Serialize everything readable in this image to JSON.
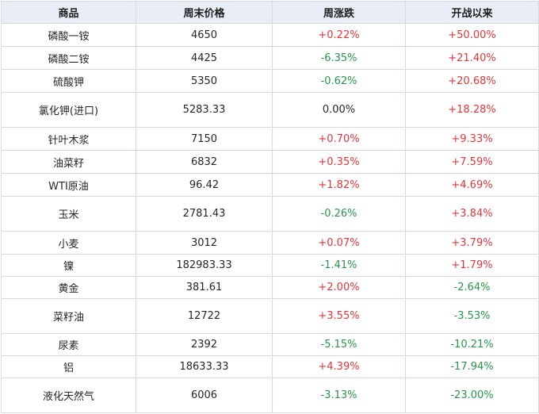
{
  "table": {
    "headers": [
      "商品",
      "周末价格",
      "周涨跌",
      "开战以来"
    ],
    "rows": [
      {
        "name": "磷酸一铵",
        "price": "4650",
        "week": "+0.22%",
        "since": "+50.00%"
      },
      {
        "name": "磷酸二铵",
        "price": "4425",
        "week": "-6.35%",
        "since": "+21.40%"
      },
      {
        "name": "硫酸钾",
        "price": "5350",
        "week": "-0.62%",
        "since": "+20.68%"
      },
      {
        "name": "氯化钾(进口)",
        "price": "5283.33",
        "week": "0.00%",
        "since": "+18.28%"
      },
      {
        "name": "针叶木浆",
        "price": "7150",
        "week": "+0.70%",
        "since": "+9.33%"
      },
      {
        "name": "油菜籽",
        "price": "6832",
        "week": "+0.35%",
        "since": "+7.59%"
      },
      {
        "name": "WTI原油",
        "price": "96.42",
        "week": "+1.82%",
        "since": "+4.69%"
      },
      {
        "name": "玉米",
        "price": "2781.43",
        "week": "-0.26%",
        "since": "+3.84%"
      },
      {
        "name": "小麦",
        "price": "3012",
        "week": "+0.07%",
        "since": "+3.79%"
      },
      {
        "name": "镍",
        "price": "182983.33",
        "week": "-1.41%",
        "since": "+1.79%"
      },
      {
        "name": "黄金",
        "price": "381.61",
        "week": "+2.00%",
        "since": "-2.64%"
      },
      {
        "name": "菜籽油",
        "price": "12722",
        "week": "+3.55%",
        "since": "-3.53%"
      },
      {
        "name": "尿素",
        "price": "2392",
        "week": "-5.15%",
        "since": "-10.21%"
      },
      {
        "name": "铝",
        "price": "18633.33",
        "week": "+4.39%",
        "since": "-17.94%"
      },
      {
        "name": "液化天然气",
        "price": "6006",
        "week": "-3.13%",
        "since": "-23.00%"
      }
    ]
  },
  "colors": {
    "up": "#e2363a",
    "down": "#26964a",
    "header_bg": "#e9eef6",
    "border": "#d4d9e2"
  }
}
